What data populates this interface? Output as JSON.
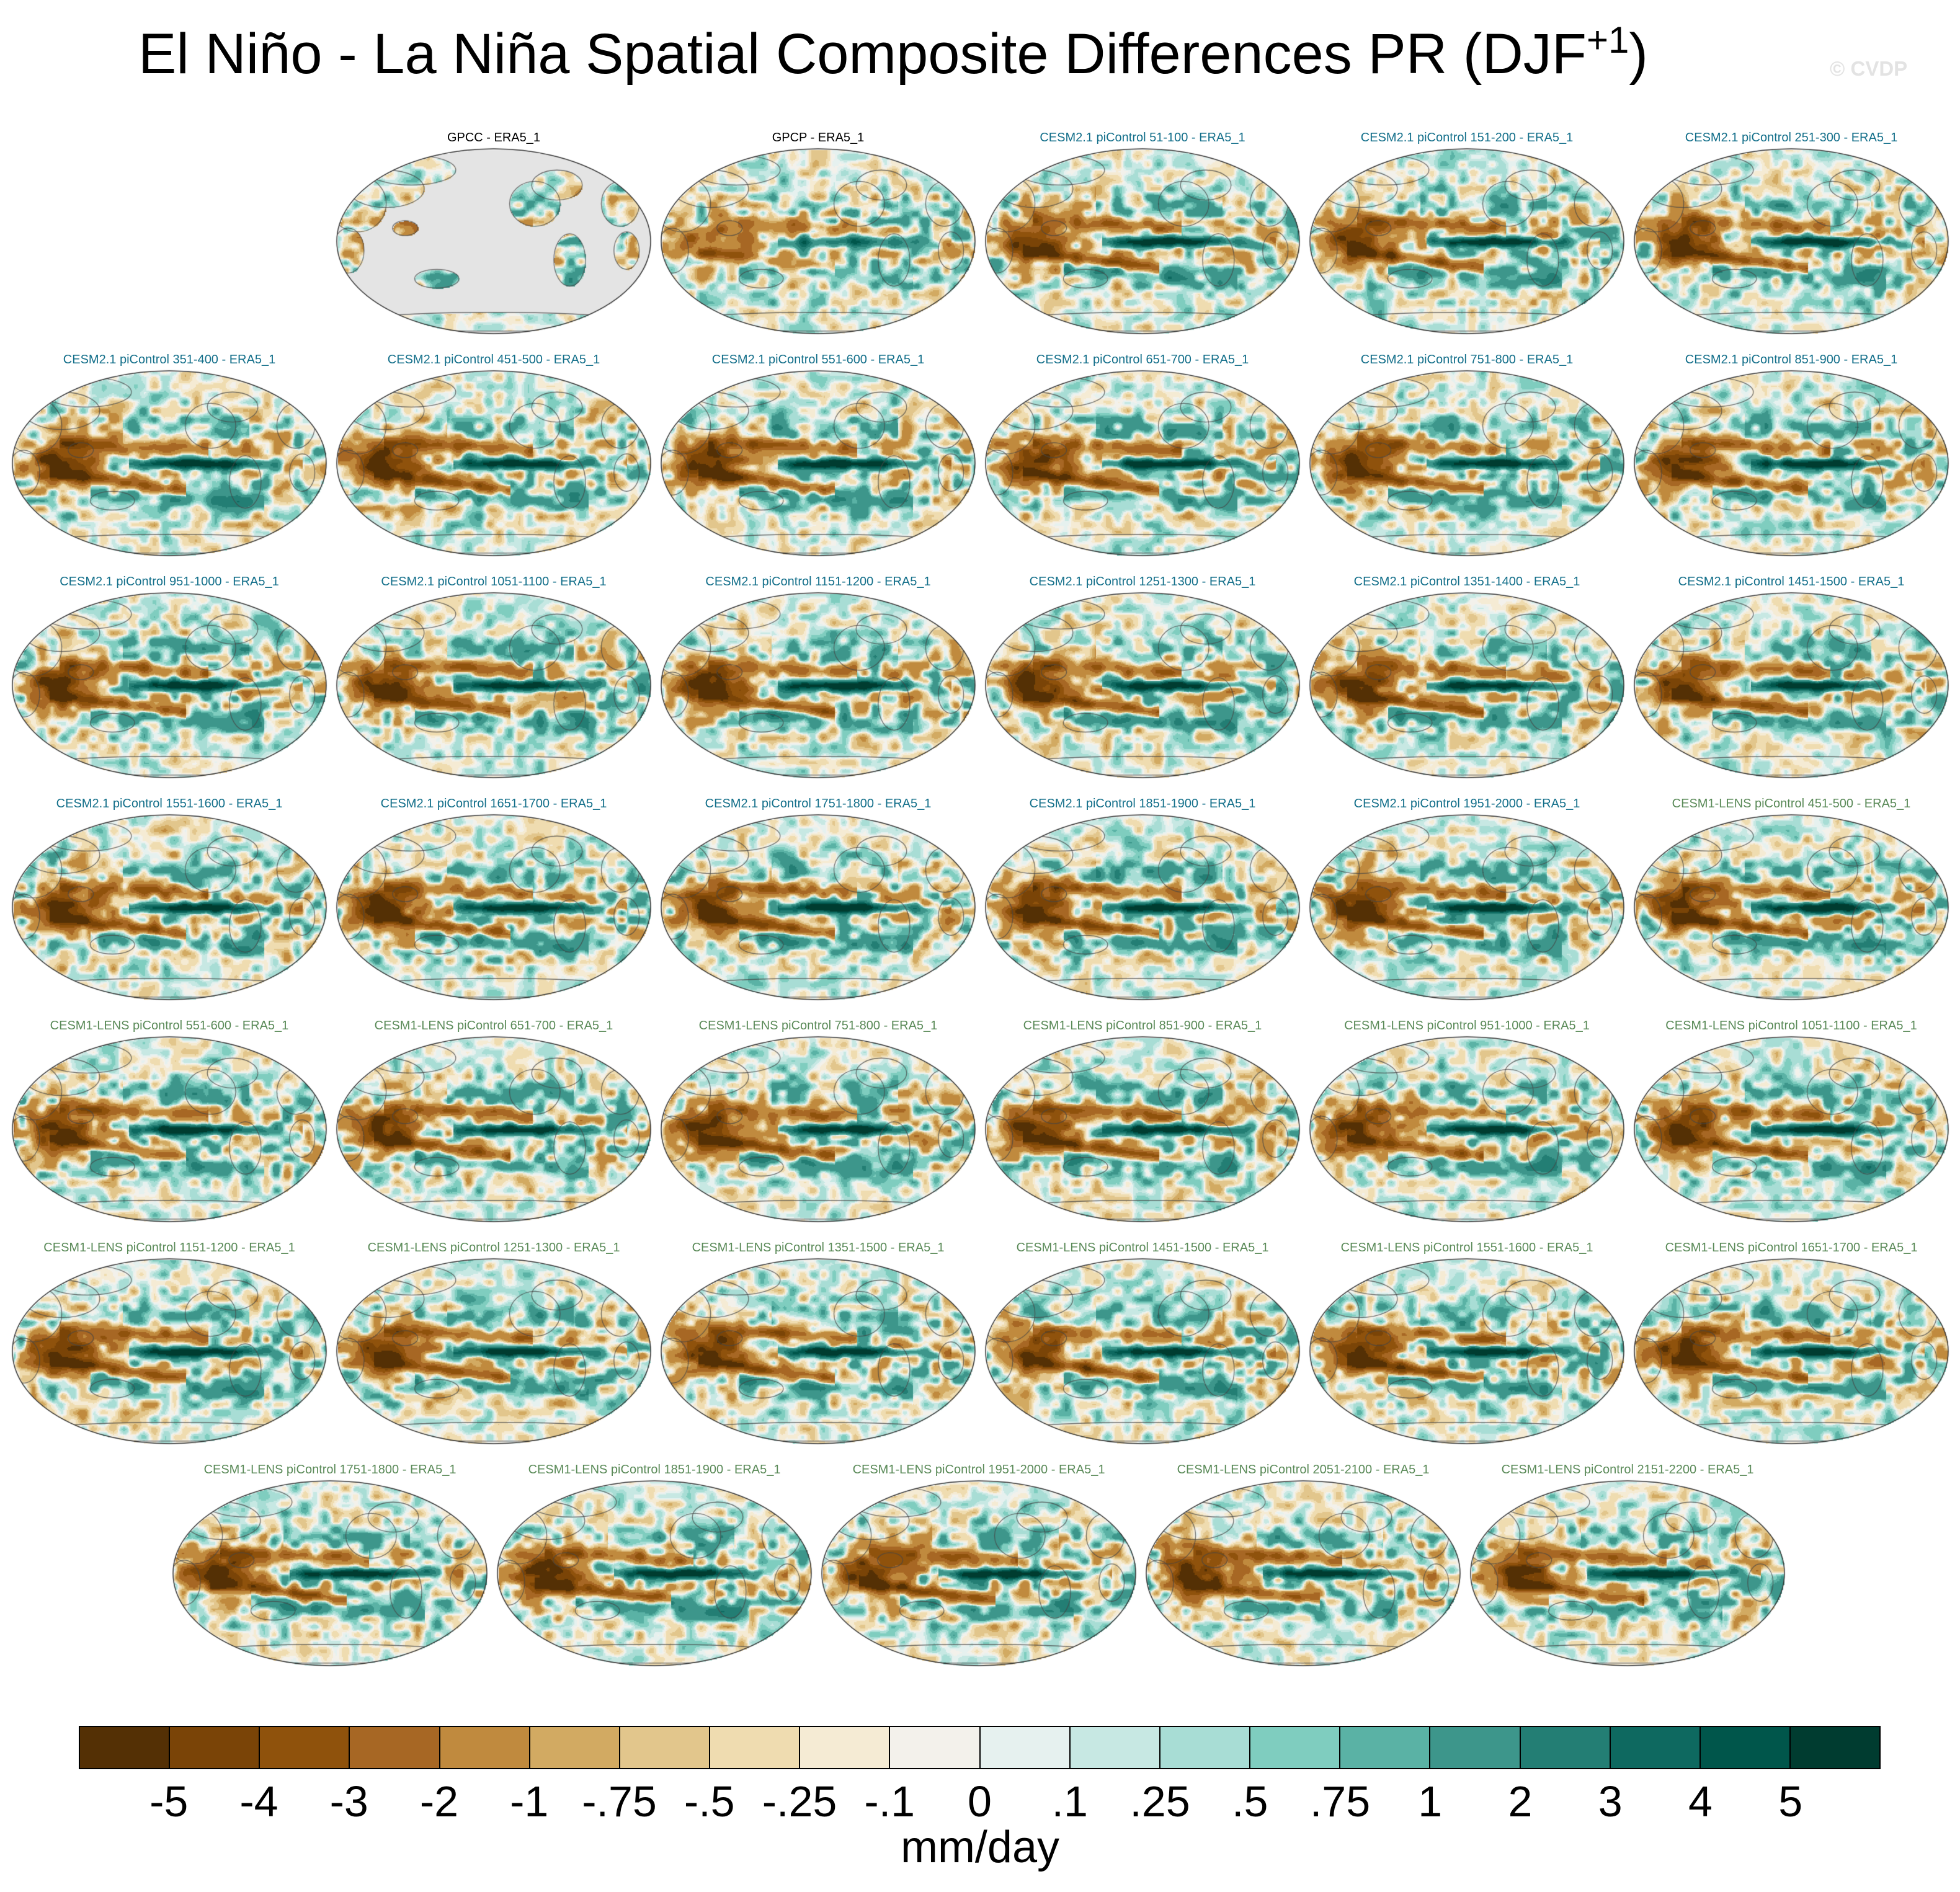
{
  "figure": {
    "title_main": "El Niño - La Niña Spatial Composite Differences PR (DJF",
    "title_sup": "+1",
    "title_close": ")",
    "watermark": "© CVDP"
  },
  "chart_data": {
    "type": "heatmap",
    "title": "El Niño - La Niña Spatial Composite Differences PR (DJF+1)",
    "projection": "Robinson (Pacific-centered)",
    "variable": "PR",
    "season": "DJF+1",
    "units": "mm/day",
    "colorbar": {
      "levels": [
        "-5",
        "-4",
        "-3",
        "-2",
        "-1",
        "-.75",
        "-.5",
        "-.25",
        "-.1",
        "0",
        ".1",
        ".25",
        ".5",
        ".75",
        "1",
        "2",
        "3",
        "4",
        "5"
      ],
      "colors": [
        "#543005",
        "#7a4407",
        "#8f520c",
        "#a76724",
        "#c08a3e",
        "#d2aa62",
        "#e2c68c",
        "#efdcb0",
        "#f5ebd4",
        "#f3f1eb",
        "#e6f1ef",
        "#c7e8e3",
        "#a8ddd5",
        "#7fcdbf",
        "#5ab2a5",
        "#3d968b",
        "#237e74",
        "#0e6960",
        "#00564b",
        "#003c30"
      ]
    },
    "panels": [
      {
        "title": "GPCC - ERA5_1",
        "group": "obs",
        "masked": true
      },
      {
        "title": "GPCP - ERA5_1",
        "group": "obs"
      },
      {
        "title": "CESM2.1 piControl 51-100 - ERA5_1",
        "group": "cesm2"
      },
      {
        "title": "CESM2.1 piControl 151-200 - ERA5_1",
        "group": "cesm2"
      },
      {
        "title": "CESM2.1 piControl 251-300 - ERA5_1",
        "group": "cesm2"
      },
      {
        "title": "CESM2.1 piControl 351-400 - ERA5_1",
        "group": "cesm2"
      },
      {
        "title": "CESM2.1 piControl 451-500 - ERA5_1",
        "group": "cesm2"
      },
      {
        "title": "CESM2.1 piControl 551-600 - ERA5_1",
        "group": "cesm2"
      },
      {
        "title": "CESM2.1 piControl 651-700 - ERA5_1",
        "group": "cesm2"
      },
      {
        "title": "CESM2.1 piControl 751-800 - ERA5_1",
        "group": "cesm2"
      },
      {
        "title": "CESM2.1 piControl 851-900 - ERA5_1",
        "group": "cesm2"
      },
      {
        "title": "CESM2.1 piControl 951-1000 - ERA5_1",
        "group": "cesm2"
      },
      {
        "title": "CESM2.1 piControl 1051-1100 - ERA5_1",
        "group": "cesm2"
      },
      {
        "title": "CESM2.1 piControl 1151-1200 - ERA5_1",
        "group": "cesm2"
      },
      {
        "title": "CESM2.1 piControl 1251-1300 - ERA5_1",
        "group": "cesm2"
      },
      {
        "title": "CESM2.1 piControl 1351-1400 - ERA5_1",
        "group": "cesm2"
      },
      {
        "title": "CESM2.1 piControl 1451-1500 - ERA5_1",
        "group": "cesm2"
      },
      {
        "title": "CESM2.1 piControl 1551-1600 - ERA5_1",
        "group": "cesm2"
      },
      {
        "title": "CESM2.1 piControl 1651-1700 - ERA5_1",
        "group": "cesm2"
      },
      {
        "title": "CESM2.1 piControl 1751-1800 - ERA5_1",
        "group": "cesm2"
      },
      {
        "title": "CESM2.1 piControl 1851-1900 - ERA5_1",
        "group": "cesm2"
      },
      {
        "title": "CESM2.1 piControl 1951-2000 - ERA5_1",
        "group": "cesm2"
      },
      {
        "title": "CESM1-LENS piControl 451-500 - ERA5_1",
        "group": "cesm1"
      },
      {
        "title": "CESM1-LENS piControl 551-600 - ERA5_1",
        "group": "cesm1"
      },
      {
        "title": "CESM1-LENS piControl 651-700 - ERA5_1",
        "group": "cesm1"
      },
      {
        "title": "CESM1-LENS piControl 751-800 - ERA5_1",
        "group": "cesm1"
      },
      {
        "title": "CESM1-LENS piControl 851-900 - ERA5_1",
        "group": "cesm1"
      },
      {
        "title": "CESM1-LENS piControl 951-1000 - ERA5_1",
        "group": "cesm1"
      },
      {
        "title": "CESM1-LENS piControl 1051-1100 - ERA5_1",
        "group": "cesm1"
      },
      {
        "title": "CESM1-LENS piControl 1151-1200 - ERA5_1",
        "group": "cesm1"
      },
      {
        "title": "CESM1-LENS piControl 1251-1300 - ERA5_1",
        "group": "cesm1"
      },
      {
        "title": "CESM1-LENS piControl 1351-1500 - ERA5_1",
        "group": "cesm1"
      },
      {
        "title": "CESM1-LENS piControl 1451-1500 - ERA5_1",
        "group": "cesm1"
      },
      {
        "title": "CESM1-LENS piControl 1551-1600 - ERA5_1",
        "group": "cesm1"
      },
      {
        "title": "CESM1-LENS piControl 1651-1700 - ERA5_1",
        "group": "cesm1"
      },
      {
        "title": "CESM1-LENS piControl 1751-1800 - ERA5_1",
        "group": "cesm1"
      },
      {
        "title": "CESM1-LENS piControl 1851-1900 - ERA5_1",
        "group": "cesm1"
      },
      {
        "title": "CESM1-LENS piControl 1951-2000 - ERA5_1",
        "group": "cesm1"
      },
      {
        "title": "CESM1-LENS piControl 2051-2100 - ERA5_1",
        "group": "cesm1"
      },
      {
        "title": "CESM1-LENS piControl 2151-2200 - ERA5_1",
        "group": "cesm1"
      }
    ]
  }
}
